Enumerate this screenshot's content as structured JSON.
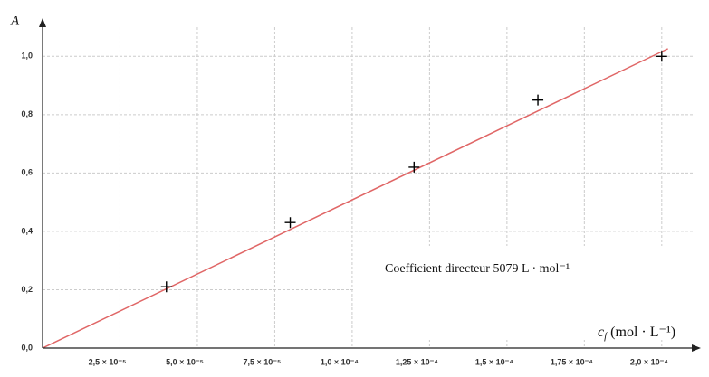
{
  "chart_data": {
    "type": "scatter",
    "y_label": "A",
    "x_label": {
      "symbol": "c",
      "subscript": "f",
      "unit": "(mol · L⁻¹)"
    },
    "annotation": "Coefficient directeur 5079 L · mol⁻¹",
    "x": [
      4e-05,
      8e-05,
      0.00012,
      0.00016,
      0.0002
    ],
    "values": [
      0.21,
      0.43,
      0.62,
      0.85,
      1.0
    ],
    "color": "#000000",
    "fit": {
      "x": [
        0,
        0.000202
      ],
      "values": [
        0,
        1.026
      ],
      "color": "#e06666"
    },
    "xlim": [
      0,
      0.00021
    ],
    "ylim": [
      0,
      1.1
    ],
    "xticks": [
      {
        "value": 2.5e-05,
        "label": "2,5 × 10⁻⁵"
      },
      {
        "value": 5e-05,
        "label": "5,0 × 10⁻⁵"
      },
      {
        "value": 7.5e-05,
        "label": "7,5 × 10⁻⁵"
      },
      {
        "value": 0.0001,
        "label": "1,0 × 10⁻⁴"
      },
      {
        "value": 0.000125,
        "label": "1,25 × 10⁻⁴"
      },
      {
        "value": 0.00015,
        "label": "1,5 × 10⁻⁴"
      },
      {
        "value": 0.000175,
        "label": "1,75 × 10⁻⁴"
      },
      {
        "value": 0.0002,
        "label": "2,0 × 10⁻⁴"
      }
    ],
    "yticks": [
      {
        "value": 0,
        "label": "0,0"
      },
      {
        "value": 0.2,
        "label": "0,2"
      },
      {
        "value": 0.4,
        "label": "0,4"
      },
      {
        "value": 0.6,
        "label": "0,6"
      },
      {
        "value": 0.8,
        "label": "0,8"
      },
      {
        "value": 1.0,
        "label": "1,0"
      }
    ],
    "grid": true
  }
}
